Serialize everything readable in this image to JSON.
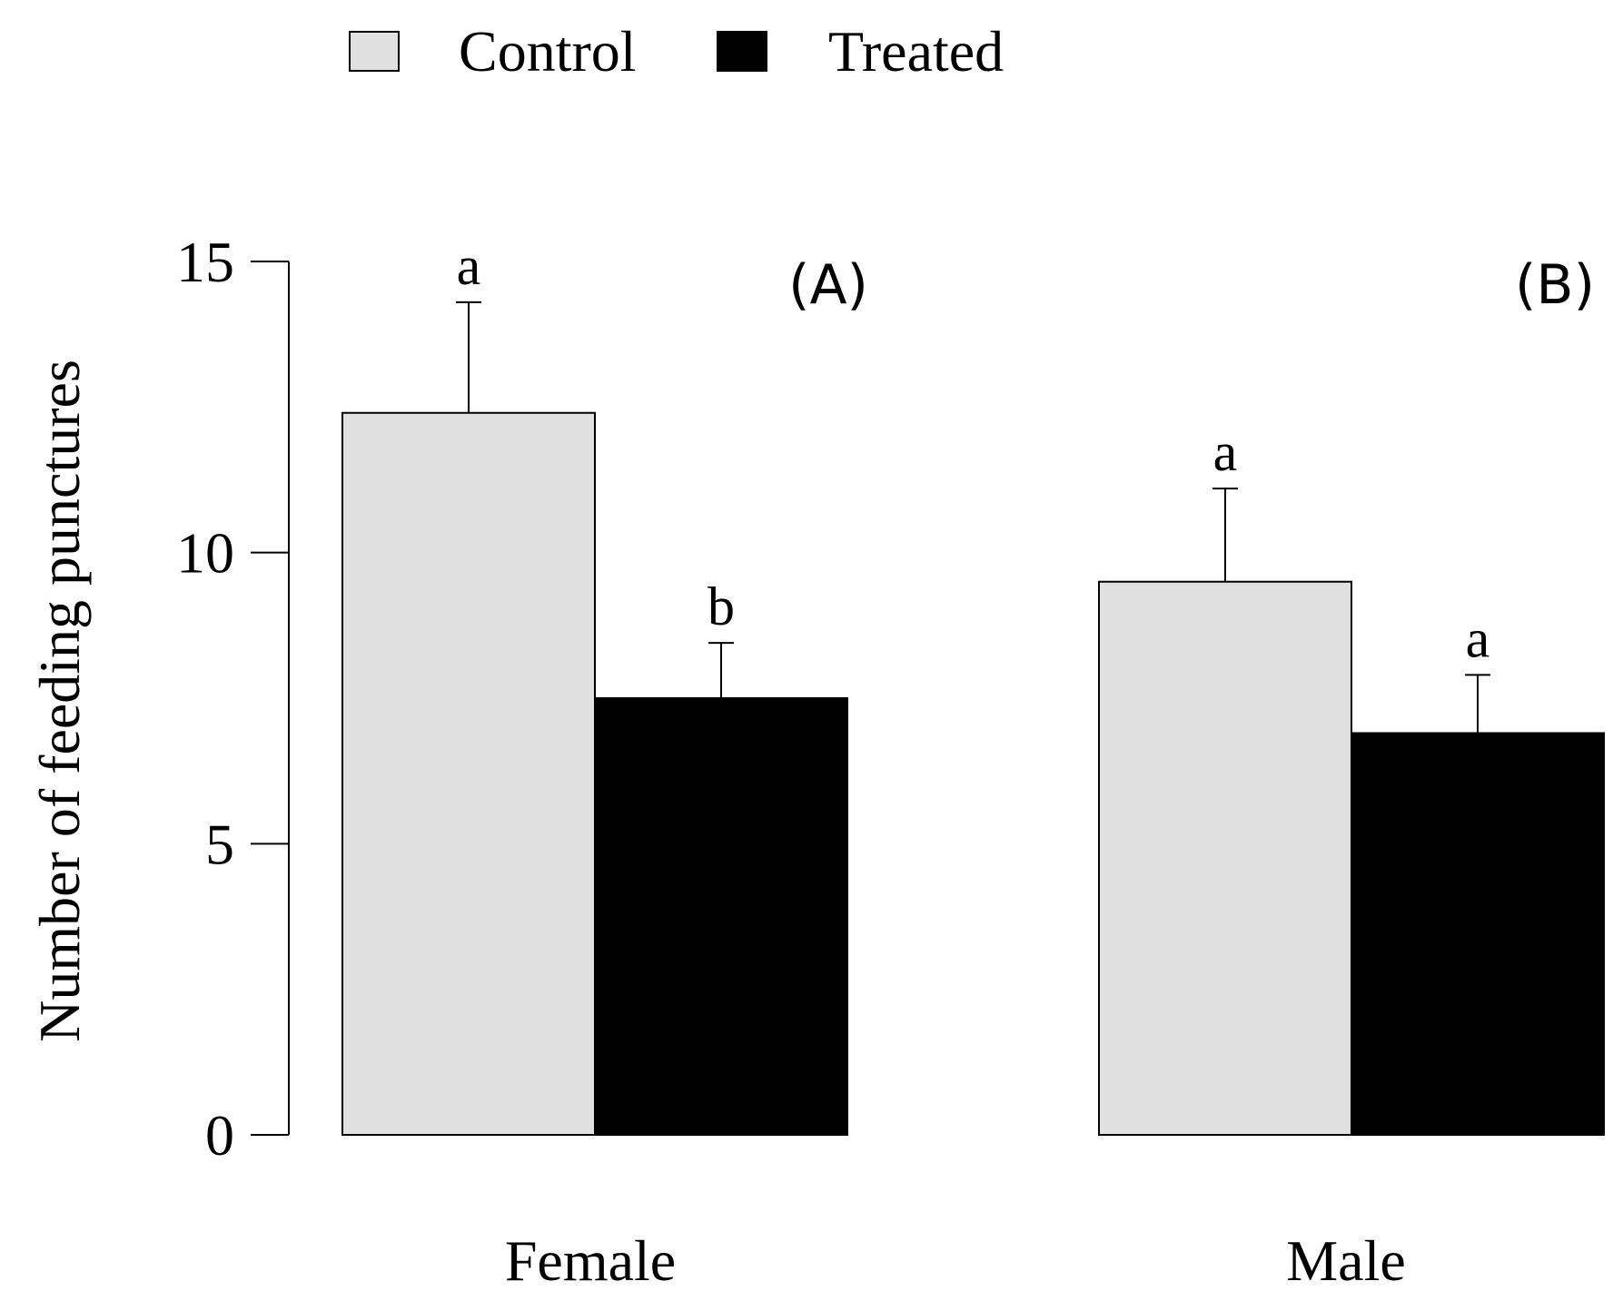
{
  "chart_data": {
    "type": "bar",
    "categories": [
      "Female",
      "Male"
    ],
    "panel_labels": [
      "(A)",
      "(B)"
    ],
    "series": [
      {
        "name": "Control",
        "color": "#e0e0e0",
        "values": [
          12.4,
          9.5
        ],
        "errors": [
          1.9,
          1.6
        ],
        "letters": [
          "a",
          "a"
        ]
      },
      {
        "name": "Treated",
        "color": "#000000",
        "values": [
          7.5,
          6.9
        ],
        "errors": [
          0.95,
          1.0
        ],
        "letters": [
          "b",
          "a"
        ]
      }
    ],
    "ylabel": "Number of feeding punctures",
    "ylim": [
      0,
      15
    ],
    "yticks": [
      0,
      5,
      10,
      15
    ],
    "ytick_labels": [
      "0",
      "5",
      "10",
      "15"
    ],
    "legend_position": "top-left",
    "grid": false
  }
}
